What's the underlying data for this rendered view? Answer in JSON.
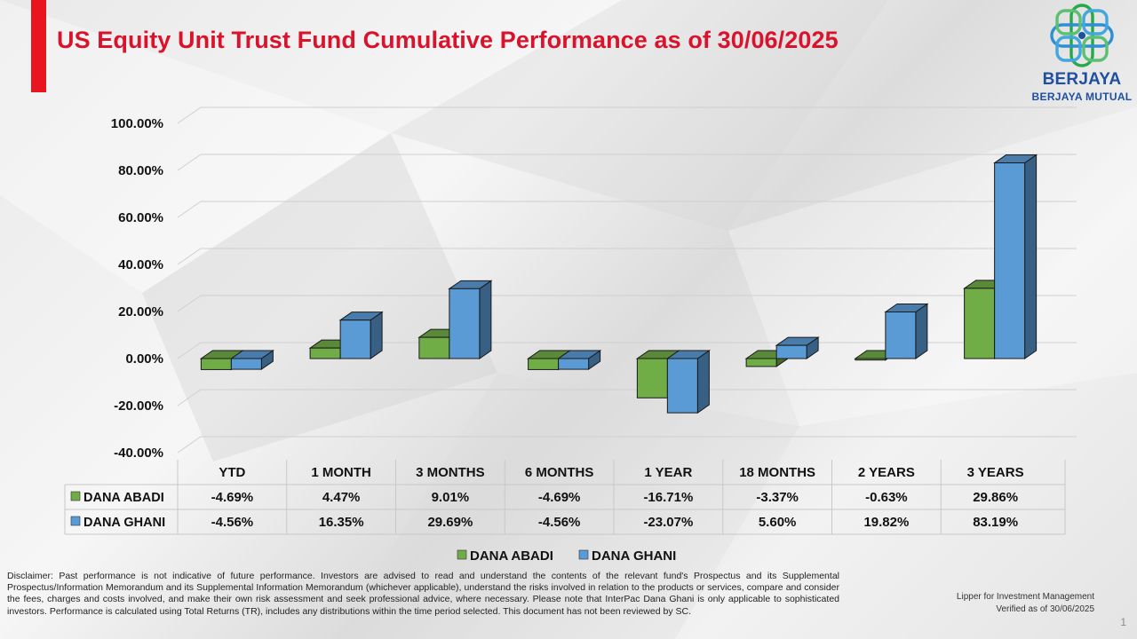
{
  "title": "US Equity Unit Trust Fund Cumulative Performance as of 30/06/2025",
  "logo": {
    "name": "BERJAYA",
    "sub": "BERJAYA MUTUAL"
  },
  "chart_data": {
    "type": "bar",
    "categories": [
      "YTD",
      "1 MONTH",
      "3 MONTHS",
      "6 MONTHS",
      "1 YEAR",
      "18 MONTHS",
      "2 YEARS",
      "3 YEARS"
    ],
    "series": [
      {
        "name": "DANA ABADI",
        "color": "#70ad47",
        "values": [
          -4.69,
          4.47,
          9.01,
          -4.69,
          -16.71,
          -3.37,
          -0.63,
          29.86
        ],
        "labels": [
          "-4.69%",
          "4.47%",
          "9.01%",
          "-4.69%",
          "-16.71%",
          "-3.37%",
          "-0.63%",
          "29.86%"
        ]
      },
      {
        "name": "DANA GHANI",
        "color": "#5b9bd5",
        "values": [
          -4.56,
          16.35,
          29.69,
          -4.56,
          -23.07,
          5.6,
          19.82,
          83.19
        ],
        "labels": [
          "-4.56%",
          "16.35%",
          "29.69%",
          "-4.56%",
          "-23.07%",
          "5.60%",
          "19.82%",
          "83.19%"
        ]
      }
    ],
    "yticks": [
      "100.00%",
      "80.00%",
      "60.00%",
      "40.00%",
      "20.00%",
      "0.00%",
      "-20.00%",
      "-40.00%"
    ],
    "ylim": [
      -40,
      100
    ],
    "grid": true,
    "legend": "bottom",
    "data_table": true,
    "style": "3d-clustered-column"
  },
  "disclaimer": "Disclaimer: Past performance is not indicative of future performance. Investors are advised to read and understand the contents of the relevant fund's Prospectus and its Supplemental Prospectus/Information Memorandum and its Supplemental Information Memorandum (whichever applicable), understand the risks involved in relation to the products or services, compare and consider the fees, charges and costs involved, and make their own risk assessment and seek professional advice, where necessary. Please note that InterPac Dana Ghani is only applicable to sophisticated investors. Performance is calculated using Total Returns (TR), includes any distributions within the time period selected. This document has not been reviewed by SC.",
  "source_line1": "Lipper for Investment Management",
  "source_line2": "Verified as of 30/06/2025",
  "page_number": "1"
}
